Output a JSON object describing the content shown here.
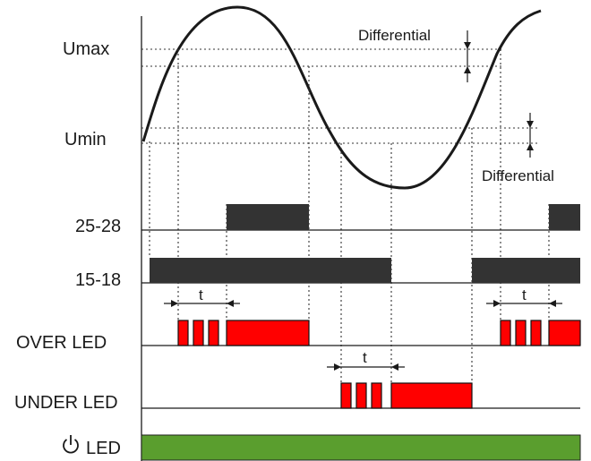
{
  "levels": {
    "umax_label": "Umax",
    "umin_label": "Umin",
    "differential_top": "Differential",
    "differential_bottom": "Differential"
  },
  "rows": {
    "relay_25_28": "25-28",
    "relay_15_18": "15-18",
    "over_led": "OVER LED",
    "under_led": "UNDER LED",
    "power_led": "LED"
  },
  "delays": {
    "over_first": "t",
    "under": "t",
    "over_second": "t"
  },
  "colors": {
    "relay_bar": "#333333",
    "led_red": "#ff0000",
    "led_green": "#5a9e2e"
  },
  "icons": {
    "power_led": "power-icon"
  }
}
